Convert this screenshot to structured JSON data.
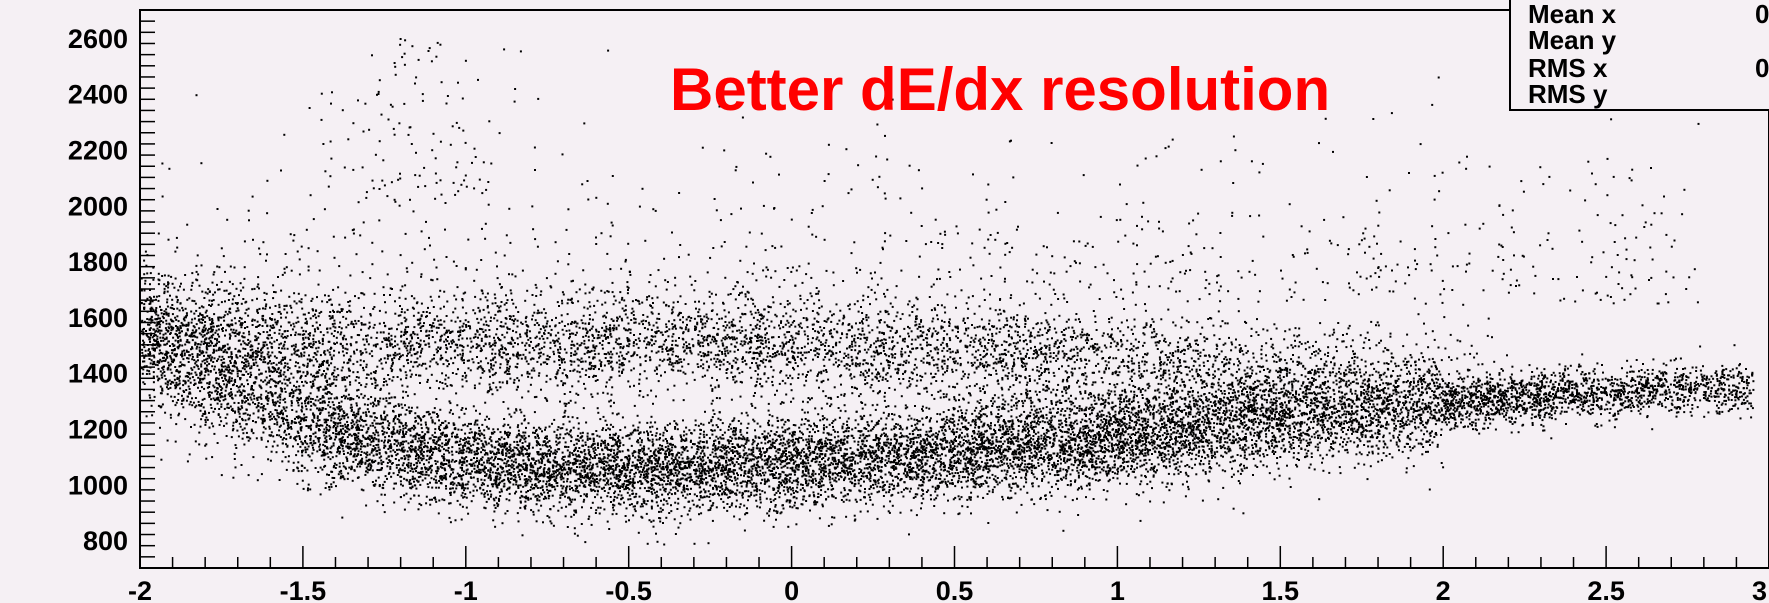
{
  "chart_data": {
    "type": "scatter",
    "title": "",
    "xlabel": "",
    "ylabel": "",
    "xlim": [
      -2,
      3
    ],
    "ylim": [
      700,
      2700
    ],
    "x_ticks": [
      "-2",
      "-1.5",
      "-1",
      "-0.5",
      "0",
      "0.5",
      "1",
      "1.5",
      "2",
      "2.5",
      "3"
    ],
    "y_ticks": [
      "800",
      "1000",
      "1200",
      "1400",
      "1600",
      "1800",
      "2000",
      "2200",
      "2400",
      "2600"
    ],
    "annotation": "Better dE/dx resolution",
    "annotation_color": "#ff0000",
    "stats_box": {
      "rows": [
        {
          "label": "Mean x",
          "value": "0"
        },
        {
          "label": "Mean y",
          "value": ""
        },
        {
          "label": "RMS x",
          "value": "0"
        },
        {
          "label": "RMS y",
          "value": ""
        }
      ]
    },
    "series": [
      {
        "description": "dense lower band",
        "points": [
          [
            -2.0,
            1500
          ],
          [
            -1.8,
            1400
          ],
          [
            -1.6,
            1300
          ],
          [
            -1.4,
            1200
          ],
          [
            -1.2,
            1130
          ],
          [
            -1.0,
            1090
          ],
          [
            -0.8,
            1070
          ],
          [
            -0.6,
            1060
          ],
          [
            -0.4,
            1060
          ],
          [
            -0.2,
            1070
          ],
          [
            0.0,
            1080
          ],
          [
            0.2,
            1100
          ],
          [
            0.4,
            1110
          ],
          [
            0.6,
            1130
          ],
          [
            0.8,
            1150
          ],
          [
            1.0,
            1170
          ],
          [
            1.2,
            1200
          ],
          [
            1.4,
            1230
          ],
          [
            1.6,
            1250
          ],
          [
            1.8,
            1270
          ],
          [
            2.0,
            1290
          ],
          [
            2.2,
            1310
          ],
          [
            2.4,
            1330
          ],
          [
            2.6,
            1340
          ],
          [
            2.8,
            1350
          ]
        ]
      },
      {
        "description": "upper band",
        "points": [
          [
            -2.0,
            1600
          ],
          [
            -1.5,
            1500
          ],
          [
            -1.0,
            1500
          ],
          [
            -0.5,
            1510
          ],
          [
            0.0,
            1500
          ],
          [
            0.5,
            1480
          ],
          [
            1.0,
            1450
          ],
          [
            1.5,
            1420
          ],
          [
            2.0,
            1400
          ]
        ]
      }
    ],
    "background_color": "#f5f0f4",
    "marker_color": "#000000"
  }
}
